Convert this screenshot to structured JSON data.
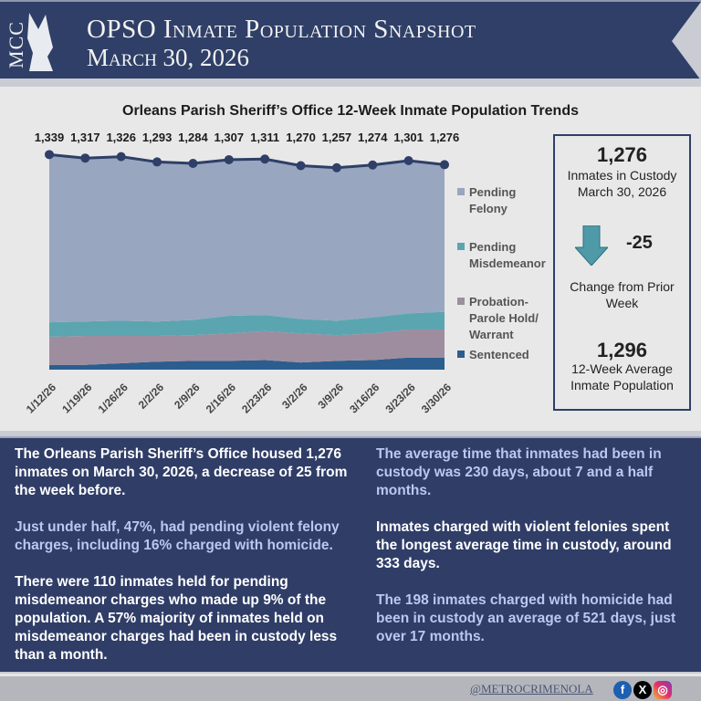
{
  "header": {
    "logo_text": "MCC",
    "title": "OPSO Inmate Population Snapshot",
    "date": "March 30, 2026"
  },
  "chart_data": {
    "type": "area",
    "title": "Orleans Parish Sheriff’s Office 12-Week Inmate Population Trends",
    "categories": [
      "1/12/26",
      "1/19/26",
      "1/26/26",
      "2/2/26",
      "2/9/26",
      "2/16/26",
      "2/23/26",
      "3/2/26",
      "3/9/26",
      "3/16/26",
      "3/23/26",
      "3/30/26"
    ],
    "totals": [
      1339,
      1317,
      1326,
      1293,
      1284,
      1307,
      1311,
      1270,
      1257,
      1274,
      1301,
      1276
    ],
    "series": [
      {
        "name": "Sentenced",
        "color": "#2c5d8f",
        "values": [
          30,
          30,
          40,
          50,
          55,
          55,
          60,
          45,
          55,
          60,
          75,
          75
        ]
      },
      {
        "name": "Probation-Parole Hold/ Warrant",
        "color": "#9e8d9f",
        "values": [
          175,
          180,
          170,
          160,
          160,
          170,
          180,
          180,
          160,
          165,
          175,
          175
        ]
      },
      {
        "name": "Pending Misdemeanor",
        "color": "#5ba5b0",
        "values": [
          90,
          90,
          95,
          90,
          95,
          110,
          100,
          90,
          90,
          100,
          100,
          110
        ]
      },
      {
        "name": "Pending Felony",
        "color": "#98a6c0",
        "values": [
          1044,
          1017,
          1021,
          993,
          974,
          972,
          971,
          955,
          952,
          949,
          951,
          916
        ]
      }
    ],
    "legend": [
      "Pending Felony",
      "Pending Misdemeanor",
      "Probation-Parole Hold/ Warrant",
      "Sentenced"
    ],
    "legend_position": "right"
  },
  "stats": {
    "custody_value": "1,276",
    "custody_label": "Inmates in Custody",
    "custody_date": "March 30, 2026",
    "change_value": "-25",
    "change_label": "Change from Prior Week",
    "avg_value": "1,296",
    "avg_label": "12-Week Average Inmate Population"
  },
  "text": {
    "left": [
      "The Orleans Parish Sheriff’s Office housed 1,276 inmates on March 30, 2026, a decrease of 25 from the week before.",
      "Just under half, 47%, had pending violent felony charges, including 16% charged with homicide.",
      "There were 110 inmates held for pending misdemeanor charges who made up 9% of the population. A 57% majority of inmates held on misdemeanor charges had been in custody less than a month."
    ],
    "right": [
      "The average time that inmates had been in custody was 230 days, about 7 and a half months.",
      "Inmates charged with violent felonies spent the longest average time in custody, around 333 days.",
      "The 198 inmates charged with homicide had been in custody an average of 521 days, just over 17 months."
    ]
  },
  "footer": {
    "handle": "@METROCRIMENOLA",
    "social": [
      "facebook-icon",
      "x-icon",
      "instagram-icon"
    ]
  }
}
